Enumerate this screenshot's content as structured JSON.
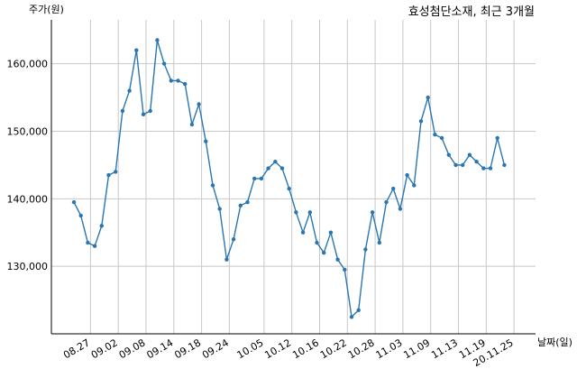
{
  "chart_data": {
    "type": "line",
    "title": "효성첨단소재, 최근 3개월",
    "ylabel": "주가(원)",
    "xlabel": "날짜(일)",
    "ylim": [
      120000,
      166500
    ],
    "yticks": [
      130000,
      140000,
      150000,
      160000
    ],
    "ytick_labels": [
      "130,000",
      "140,000",
      "150,000",
      "160,000"
    ],
    "x_tick_labels": [
      "08.27",
      "09.02",
      "09.08",
      "09.14",
      "09.18",
      "09.24",
      "10.05",
      "10.12",
      "10.16",
      "10.22",
      "10.28",
      "11.03",
      "11.09",
      "11.13",
      "11.19",
      "20.11.25"
    ],
    "x_tick_indices": [
      2,
      6,
      10,
      14,
      18,
      22,
      27,
      31,
      35,
      39,
      43,
      47,
      51,
      55,
      59,
      63
    ],
    "grid": true,
    "line_color": "#2a76b1",
    "series": [
      {
        "values": [
          139500,
          137500,
          133500,
          133000,
          136000,
          143500,
          144000,
          153000,
          156000,
          162000,
          152500,
          153000,
          163500,
          160000,
          157500,
          157500,
          157000,
          151000,
          154000,
          148500,
          142000,
          138500,
          131000,
          134000,
          139000,
          139500,
          143000,
          143000,
          144500,
          145500,
          144500,
          141500,
          138000,
          135000,
          138000,
          133500,
          132000,
          135000,
          131000,
          129500,
          122500,
          123500,
          132500,
          138000,
          133500,
          139500,
          141500,
          138500,
          143500,
          142000,
          151500,
          155000,
          149500,
          149000,
          146500,
          145000,
          145000,
          146500,
          145500,
          144500,
          144500,
          149000,
          145000
        ]
      }
    ]
  }
}
